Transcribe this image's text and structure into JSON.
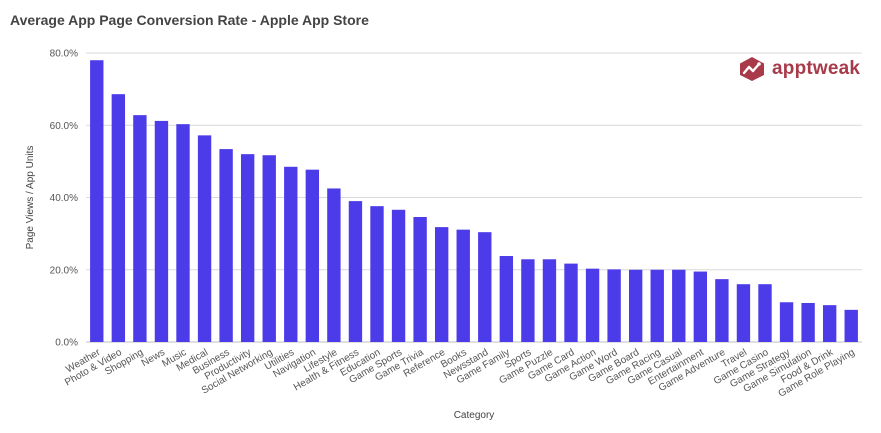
{
  "brand": {
    "name": "apptweak",
    "color": "#a83a4a"
  },
  "colors": {
    "bar": "#4b3be8",
    "grid": "#d9d9d9",
    "text": "#555555"
  },
  "chart_data": {
    "type": "bar",
    "title": "Average App Page Conversion Rate - Apple App Store",
    "xlabel": "Category",
    "ylabel": "Page Views / App Units",
    "ylim": [
      0,
      80
    ],
    "yticks": [
      0,
      20,
      40,
      60,
      80
    ],
    "ytick_labels": [
      "0.0%",
      "20.0%",
      "40.0%",
      "60.0%",
      "80.0%"
    ],
    "grid": true,
    "legend": "none",
    "categories": [
      "Weather",
      "Photo & Video",
      "Shopping",
      "News",
      "Music",
      "Medical",
      "Business",
      "Productivity",
      "Social Networking",
      "Utilities",
      "Navigation",
      "Lifestyle",
      "Health & Fitness",
      "Education",
      "Game Sports",
      "Game Trivia",
      "Reference",
      "Books",
      "Newsstand",
      "Game Family",
      "Sports",
      "Game Puzzle",
      "Game Card",
      "Game Action",
      "Game Word",
      "Game Board",
      "Game Racing",
      "Game Casual",
      "Entertainment",
      "Game Adventure",
      "Travel",
      "Game Casino",
      "Game Strategy",
      "Game Simulation",
      "Food & Drink",
      "Game Role Playing"
    ],
    "values": [
      78.0,
      68.6,
      62.8,
      61.2,
      60.3,
      57.2,
      53.4,
      52.0,
      51.7,
      48.5,
      47.7,
      42.5,
      39.0,
      37.6,
      36.6,
      34.6,
      31.8,
      31.1,
      30.4,
      23.8,
      22.9,
      22.9,
      21.7,
      20.3,
      20.1,
      20.0,
      20.0,
      20.0,
      19.5,
      17.4,
      16.0,
      16.0,
      11.0,
      10.8,
      10.2,
      8.9
    ]
  }
}
